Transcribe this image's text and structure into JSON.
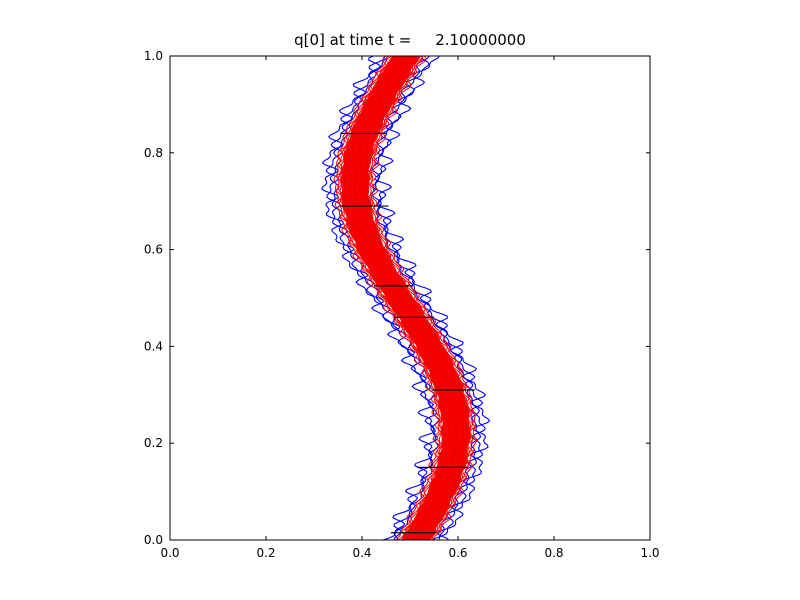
{
  "figure": {
    "background": "#ffffff"
  },
  "chart_data": {
    "type": "contour",
    "title": "q[0] at time t =     2.10000000",
    "xlabel": "",
    "ylabel": "",
    "xlim": [
      0,
      1
    ],
    "ylim": [
      0,
      1
    ],
    "xticks": [
      "0.0",
      "0.2",
      "0.4",
      "0.6",
      "0.8",
      "1.0"
    ],
    "yticks": [
      "0.0",
      "0.2",
      "0.4",
      "0.6",
      "0.8",
      "1.0"
    ],
    "grid": false,
    "legend": "none",
    "colors": {
      "red_contours": "#ff0000",
      "red_fill": "#ee0000",
      "blue_contours": "#0000ff",
      "grid_lines": "#000000",
      "axis": "#000000",
      "text": "#000000"
    },
    "band": {
      "description": "S-shaped bundle of contour lines: dense red contours filling the band, looser wiggly blue contours outside; centerline x = 0.5 + amplitude*sin(2*pi*y + phase) + tilt*y",
      "center_x": 0.5,
      "amplitude": 0.1,
      "phase": 0.12,
      "tilt": -0.02,
      "red_fill_half_width": 0.028,
      "red_half_widths": [
        0.006,
        0.012,
        0.018,
        0.024,
        0.029,
        0.032,
        0.035,
        0.038
      ],
      "blue_half_widths": [
        0.043,
        0.049,
        0.056
      ],
      "blue_wiggle_amps": [
        0.006,
        0.009,
        0.012
      ]
    },
    "grid_segments": [
      {
        "y": 0.015,
        "x1": 0.46,
        "x2": 0.555
      },
      {
        "y": 0.15,
        "x1": 0.515,
        "x2": 0.62
      },
      {
        "y": 0.31,
        "x1": 0.545,
        "x2": 0.635
      },
      {
        "y": 0.46,
        "x1": 0.465,
        "x2": 0.55
      },
      {
        "y": 0.525,
        "x1": 0.425,
        "x2": 0.505
      },
      {
        "y": 0.69,
        "x1": 0.355,
        "x2": 0.455
      },
      {
        "y": 0.84,
        "x1": 0.355,
        "x2": 0.45
      }
    ]
  }
}
